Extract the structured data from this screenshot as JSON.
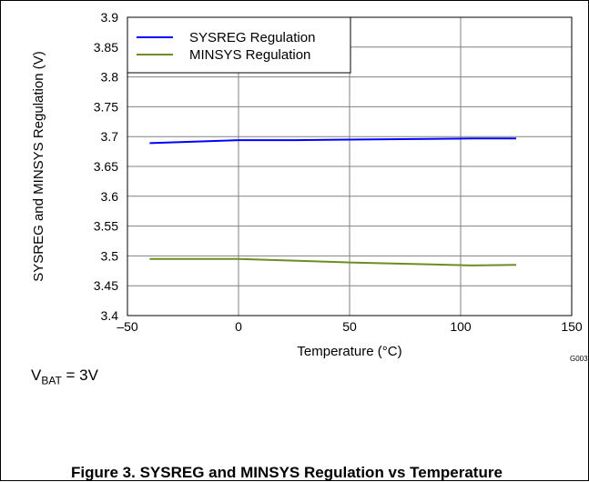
{
  "chart_data": {
    "type": "line",
    "ylabel": "SYSREG and MINSYS Regulation (V)",
    "xlabel": "Temperature (°C)",
    "xlim": [
      -50,
      150
    ],
    "ylim": [
      3.4,
      3.9
    ],
    "x_ticks": [
      "–50",
      "0",
      "50",
      "100",
      "150"
    ],
    "y_ticks": [
      "3.4",
      "3.45",
      "3.5",
      "3.55",
      "3.6",
      "3.65",
      "3.7",
      "3.75",
      "3.8",
      "3.85",
      "3.9"
    ],
    "grid": true,
    "legend_position": "top-left",
    "series": [
      {
        "name": "SYSREG Regulation",
        "color": "#0000ff",
        "x": [
          -40,
          0,
          25,
          50,
          85,
          105,
          125
        ],
        "y": [
          3.689,
          3.694,
          3.694,
          3.695,
          3.696,
          3.697,
          3.697
        ]
      },
      {
        "name": "MINSYS Regulation",
        "color": "#6b8e23",
        "x": [
          -40,
          0,
          25,
          50,
          85,
          105,
          125
        ],
        "y": [
          3.495,
          3.495,
          3.492,
          3.489,
          3.486,
          3.484,
          3.485
        ]
      }
    ]
  },
  "figure_code": "G003",
  "condition": {
    "prefix": "V",
    "subscript": "BAT",
    "suffix": " = 3V"
  },
  "caption": "Figure 3. SYSREG and MINSYS Regulation vs Temperature"
}
